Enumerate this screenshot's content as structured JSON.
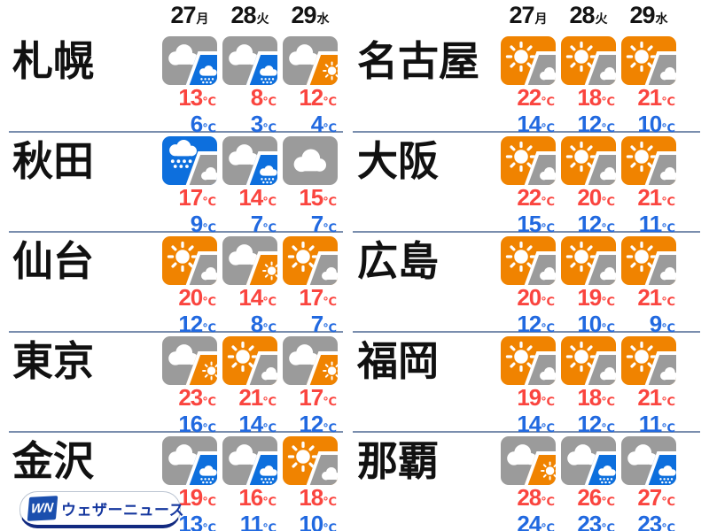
{
  "dates": [
    {
      "num": "27",
      "weekday": "月"
    },
    {
      "num": "28",
      "weekday": "火"
    },
    {
      "num": "29",
      "weekday": "水"
    }
  ],
  "units": {
    "temp": "℃"
  },
  "panels": [
    {
      "cities": [
        {
          "name": "札幌",
          "days": [
            {
              "icon": "cloud-rain",
              "high": "13",
              "low": "6"
            },
            {
              "icon": "cloud-rain",
              "high": "8",
              "low": "3"
            },
            {
              "icon": "cloud-sun",
              "high": "12",
              "low": "4"
            }
          ]
        },
        {
          "name": "秋田",
          "days": [
            {
              "icon": "rain-cloud",
              "high": "17",
              "low": "9"
            },
            {
              "icon": "cloud-rain",
              "high": "14",
              "low": "7"
            },
            {
              "icon": "cloudy",
              "high": "15",
              "low": "7"
            }
          ]
        },
        {
          "name": "仙台",
          "days": [
            {
              "icon": "sun-cloud",
              "high": "20",
              "low": "12"
            },
            {
              "icon": "cloud-sun",
              "high": "14",
              "low": "8"
            },
            {
              "icon": "sun-cloud",
              "high": "17",
              "low": "7"
            }
          ]
        },
        {
          "name": "東京",
          "days": [
            {
              "icon": "cloud-sun",
              "high": "23",
              "low": "16"
            },
            {
              "icon": "sun-cloud",
              "high": "21",
              "low": "14"
            },
            {
              "icon": "cloud-sun",
              "high": "17",
              "low": "12"
            }
          ]
        },
        {
          "name": "金沢",
          "days": [
            {
              "icon": "cloud-rain",
              "high": "19",
              "low": "13"
            },
            {
              "icon": "cloud-rain",
              "high": "16",
              "low": "11"
            },
            {
              "icon": "sun-cloud",
              "high": "18",
              "low": "10"
            }
          ]
        }
      ]
    },
    {
      "cities": [
        {
          "name": "名古屋",
          "days": [
            {
              "icon": "sun-cloud",
              "high": "22",
              "low": "14"
            },
            {
              "icon": "sun-cloud",
              "high": "18",
              "low": "12"
            },
            {
              "icon": "sun-cloud",
              "high": "21",
              "low": "10"
            }
          ]
        },
        {
          "name": "大阪",
          "days": [
            {
              "icon": "sun-cloud",
              "high": "22",
              "low": "15"
            },
            {
              "icon": "sun-cloud",
              "high": "20",
              "low": "12"
            },
            {
              "icon": "sun-cloud",
              "high": "21",
              "low": "11"
            }
          ]
        },
        {
          "name": "広島",
          "days": [
            {
              "icon": "sun-cloud",
              "high": "20",
              "low": "12"
            },
            {
              "icon": "sun-cloud",
              "high": "19",
              "low": "10"
            },
            {
              "icon": "sun-cloud",
              "high": "21",
              "low": "9"
            }
          ]
        },
        {
          "name": "福岡",
          "days": [
            {
              "icon": "sun-cloud",
              "high": "19",
              "low": "14"
            },
            {
              "icon": "sun-cloud",
              "high": "18",
              "low": "12"
            },
            {
              "icon": "sun-cloud",
              "high": "21",
              "low": "11"
            }
          ]
        },
        {
          "name": "那覇",
          "days": [
            {
              "icon": "cloud-sun",
              "high": "28",
              "low": "24"
            },
            {
              "icon": "cloud-rain",
              "high": "26",
              "low": "23"
            },
            {
              "icon": "cloud-rain",
              "high": "27",
              "low": "23"
            }
          ]
        }
      ]
    }
  ],
  "icon_legend": {
    "sun-cloud": "sunny-then-cloudy",
    "cloud-sun": "cloudy-then-sunny",
    "cloud-rain": "cloudy-then-rain",
    "rain-cloud": "rain-then-cloudy",
    "cloudy": "cloudy-all-day"
  },
  "colors": {
    "sunny": "#f08300",
    "cloudy": "#9b9b9b",
    "rain": "#0d6fdd",
    "high_temp": "#fa453f",
    "low_temp": "#2169e0",
    "divider": "#7a8eae",
    "logo_blue": "#1b4fae"
  },
  "logo": {
    "badge": "WN",
    "text": "ウェザーニュース"
  }
}
